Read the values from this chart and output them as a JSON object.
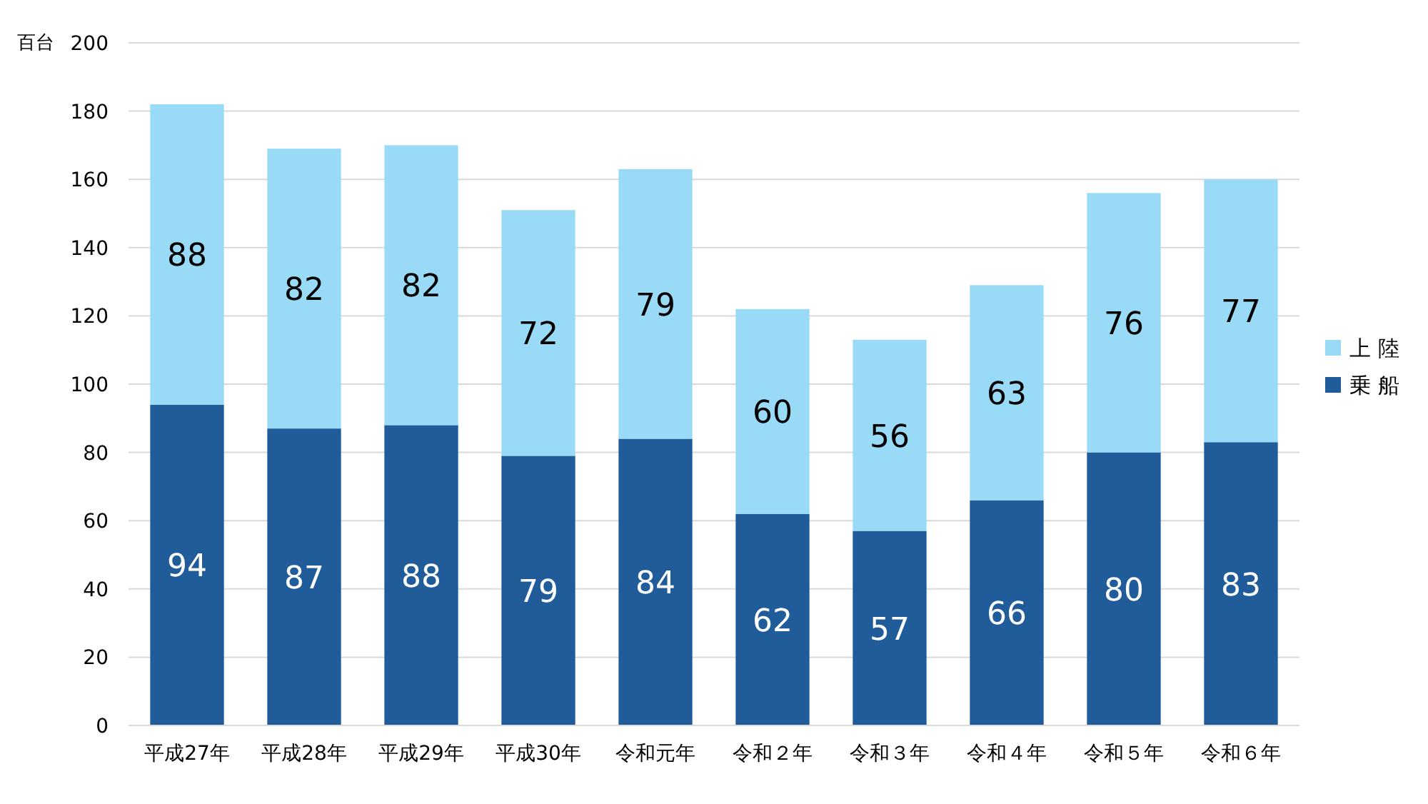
{
  "chart_data": {
    "type": "bar",
    "stacked": true,
    "ylabel": "百台",
    "categories": [
      "平成27年",
      "平成28年",
      "平成29年",
      "平成30年",
      "令和元年",
      "令和２年",
      "令和３年",
      "令和４年",
      "令和５年",
      "令和６年"
    ],
    "series": [
      {
        "name": "乗 船",
        "color": "#1f5c99",
        "values": [
          94,
          87,
          88,
          79,
          84,
          62,
          57,
          66,
          80,
          83
        ]
      },
      {
        "name": "上 陸",
        "color": "#99dbf7",
        "values": [
          88,
          82,
          82,
          72,
          79,
          60,
          56,
          63,
          76,
          77
        ]
      }
    ],
    "ylim": [
      0,
      200
    ],
    "yticks": [
      0,
      20,
      40,
      60,
      80,
      100,
      120,
      140,
      160,
      180,
      200
    ],
    "grid": "y",
    "legend": "right",
    "data_labels": true
  }
}
